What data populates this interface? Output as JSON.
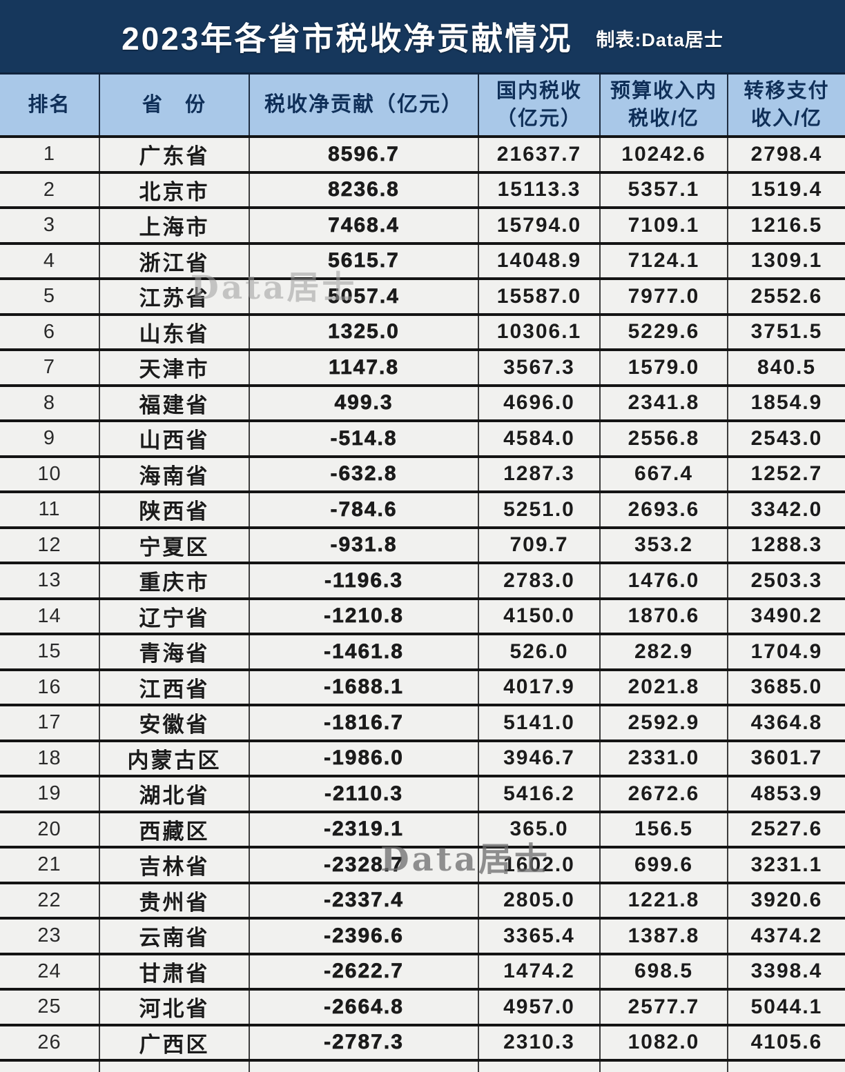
{
  "title": {
    "main": "2023年各省市税收净贡献情况",
    "credit": "制表:Data居士"
  },
  "watermark_text": "Data居士",
  "colors": {
    "title_background": "#16375c",
    "header_background": "#a9c8e8",
    "header_text": "#0f2f58",
    "row_background": "#f1f1ef",
    "row_border": "#141414",
    "title_text": "#ffffff"
  },
  "table": {
    "header": [
      {
        "lines": [
          "排名"
        ]
      },
      {
        "lines": [
          "省　份"
        ]
      },
      {
        "lines": [
          "税收净贡献（亿元）"
        ]
      },
      {
        "lines": [
          "国内税收",
          "（亿元）"
        ]
      },
      {
        "lines": [
          "预算收入内",
          "税收/亿"
        ]
      },
      {
        "lines": [
          "转移支付",
          "收入/亿"
        ]
      }
    ],
    "rows": [
      [
        "1",
        "广东省",
        "8596.7",
        "21637.7",
        "10242.6",
        "2798.4"
      ],
      [
        "2",
        "北京市",
        "8236.8",
        "15113.3",
        "5357.1",
        "1519.4"
      ],
      [
        "3",
        "上海市",
        "7468.4",
        "15794.0",
        "7109.1",
        "1216.5"
      ],
      [
        "4",
        "浙江省",
        "5615.7",
        "14048.9",
        "7124.1",
        "1309.1"
      ],
      [
        "5",
        "江苏省",
        "5057.4",
        "15587.0",
        "7977.0",
        "2552.6"
      ],
      [
        "6",
        "山东省",
        "1325.0",
        "10306.1",
        "5229.6",
        "3751.5"
      ],
      [
        "7",
        "天津市",
        "1147.8",
        "3567.3",
        "1579.0",
        "840.5"
      ],
      [
        "8",
        "福建省",
        "499.3",
        "4696.0",
        "2341.8",
        "1854.9"
      ],
      [
        "9",
        "山西省",
        "-514.8",
        "4584.0",
        "2556.8",
        "2543.0"
      ],
      [
        "10",
        "海南省",
        "-632.8",
        "1287.3",
        "667.4",
        "1252.7"
      ],
      [
        "11",
        "陕西省",
        "-784.6",
        "5251.0",
        "2693.6",
        "3342.0"
      ],
      [
        "12",
        "宁夏区",
        "-931.8",
        "709.7",
        "353.2",
        "1288.3"
      ],
      [
        "13",
        "重庆市",
        "-1196.3",
        "2783.0",
        "1476.0",
        "2503.3"
      ],
      [
        "14",
        "辽宁省",
        "-1210.8",
        "4150.0",
        "1870.6",
        "3490.2"
      ],
      [
        "15",
        "青海省",
        "-1461.8",
        "526.0",
        "282.9",
        "1704.9"
      ],
      [
        "16",
        "江西省",
        "-1688.1",
        "4017.9",
        "2021.8",
        "3685.0"
      ],
      [
        "17",
        "安徽省",
        "-1816.7",
        "5141.0",
        "2592.9",
        "4364.8"
      ],
      [
        "18",
        "内蒙古区",
        "-1986.0",
        "3946.7",
        "2331.0",
        "3601.7"
      ],
      [
        "19",
        "湖北省",
        "-2110.3",
        "5416.2",
        "2672.6",
        "4853.9"
      ],
      [
        "20",
        "西藏区",
        "-2319.1",
        "365.0",
        "156.5",
        "2527.6"
      ],
      [
        "21",
        "吉林省",
        "-2328.7",
        "1602.0",
        "699.6",
        "3231.1"
      ],
      [
        "22",
        "贵州省",
        "-2337.4",
        "2805.0",
        "1221.8",
        "3920.6"
      ],
      [
        "23",
        "云南省",
        "-2396.6",
        "3365.4",
        "1387.8",
        "4374.2"
      ],
      [
        "24",
        "甘肃省",
        "-2622.7",
        "1474.2",
        "698.5",
        "3398.4"
      ],
      [
        "25",
        "河北省",
        "-2664.8",
        "4957.0",
        "2577.7",
        "5044.1"
      ],
      [
        "26",
        "广西区",
        "-2787.3",
        "2310.3",
        "1082.0",
        "4105.6"
      ]
    ]
  },
  "chart_data": {
    "type": "table",
    "title": "2023年各省市税收净贡献情况",
    "source_credit": "制表:Data居士",
    "columns": [
      "排名",
      "省份",
      "税收净贡献（亿元）",
      "国内税收（亿元）",
      "预算收入内税收/亿",
      "转移支付收入/亿"
    ],
    "rows": [
      [
        1,
        "广东省",
        8596.7,
        21637.7,
        10242.6,
        2798.4
      ],
      [
        2,
        "北京市",
        8236.8,
        15113.3,
        5357.1,
        1519.4
      ],
      [
        3,
        "上海市",
        7468.4,
        15794.0,
        7109.1,
        1216.5
      ],
      [
        4,
        "浙江省",
        5615.7,
        14048.9,
        7124.1,
        1309.1
      ],
      [
        5,
        "江苏省",
        5057.4,
        15587.0,
        7977.0,
        2552.6
      ],
      [
        6,
        "山东省",
        1325.0,
        10306.1,
        5229.6,
        3751.5
      ],
      [
        7,
        "天津市",
        1147.8,
        3567.3,
        1579.0,
        840.5
      ],
      [
        8,
        "福建省",
        499.3,
        4696.0,
        2341.8,
        1854.9
      ],
      [
        9,
        "山西省",
        -514.8,
        4584.0,
        2556.8,
        2543.0
      ],
      [
        10,
        "海南省",
        -632.8,
        1287.3,
        667.4,
        1252.7
      ],
      [
        11,
        "陕西省",
        -784.6,
        5251.0,
        2693.6,
        3342.0
      ],
      [
        12,
        "宁夏区",
        -931.8,
        709.7,
        353.2,
        1288.3
      ],
      [
        13,
        "重庆市",
        -1196.3,
        2783.0,
        1476.0,
        2503.3
      ],
      [
        14,
        "辽宁省",
        -1210.8,
        4150.0,
        1870.6,
        3490.2
      ],
      [
        15,
        "青海省",
        -1461.8,
        526.0,
        282.9,
        1704.9
      ],
      [
        16,
        "江西省",
        -1688.1,
        4017.9,
        2021.8,
        3685.0
      ],
      [
        17,
        "安徽省",
        -1816.7,
        5141.0,
        2592.9,
        4364.8
      ],
      [
        18,
        "内蒙古区",
        -1986.0,
        3946.7,
        2331.0,
        3601.7
      ],
      [
        19,
        "湖北省",
        -2110.3,
        5416.2,
        2672.6,
        4853.9
      ],
      [
        20,
        "西藏区",
        -2319.1,
        365.0,
        156.5,
        2527.6
      ],
      [
        21,
        "吉林省",
        -2328.7,
        1602.0,
        699.6,
        3231.1
      ],
      [
        22,
        "贵州省",
        -2337.4,
        2805.0,
        1221.8,
        3920.6
      ],
      [
        23,
        "云南省",
        -2396.6,
        3365.4,
        1387.8,
        4374.2
      ],
      [
        24,
        "甘肃省",
        -2622.7,
        1474.2,
        698.5,
        3398.4
      ],
      [
        25,
        "河北省",
        -2664.8,
        4957.0,
        2577.7,
        5044.1
      ],
      [
        26,
        "广西区",
        -2787.3,
        2310.3,
        1082.0,
        4105.6
      ]
    ]
  }
}
